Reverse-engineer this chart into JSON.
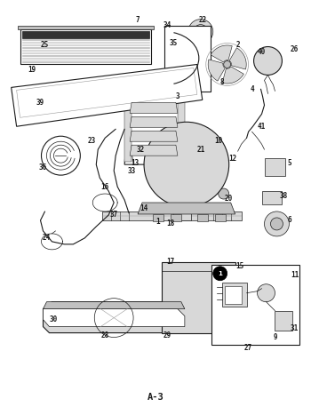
{
  "title": "",
  "page_label": "A-3",
  "bg_color": "#ffffff",
  "line_color": "#1a1a1a",
  "fig_width": 3.5,
  "fig_height": 4.58,
  "dpi": 100,
  "gray_light": "#d8d8d8",
  "gray_mid": "#999999",
  "gray_dark": "#444444",
  "gray_fill": "#c0c0c0"
}
